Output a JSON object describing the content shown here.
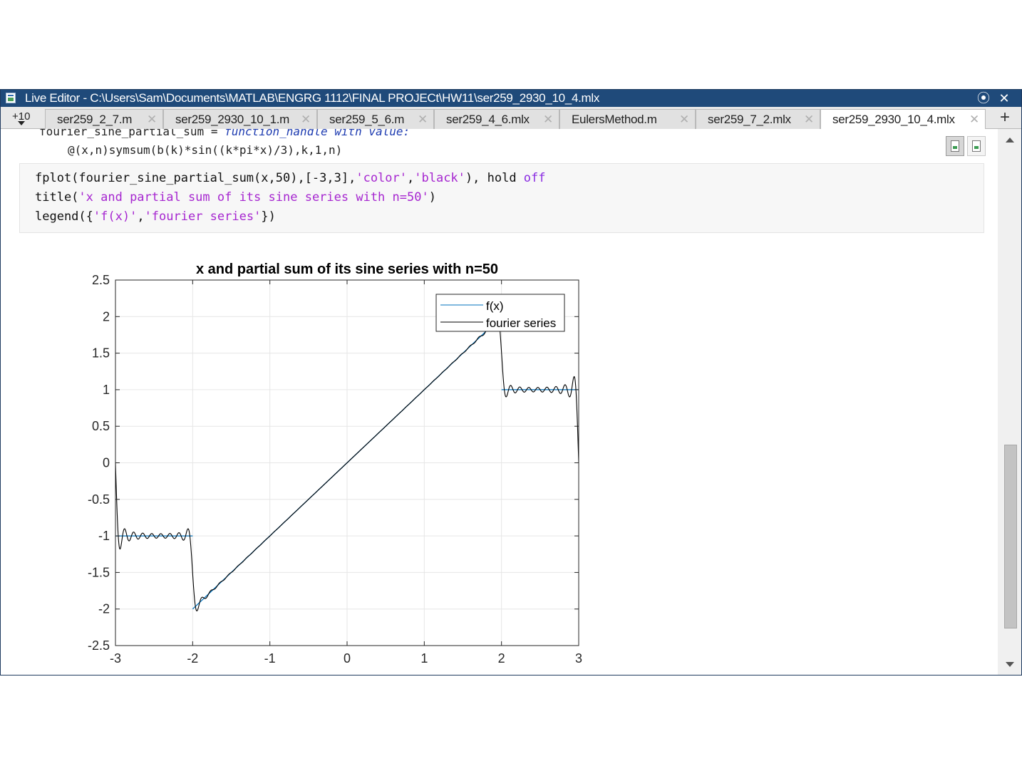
{
  "window": {
    "title": "Live Editor - C:\\Users\\Sam\\Documents\\MATLAB\\ENGRG 1112\\FINAL PROJECt\\HW11\\ser259_2930_10_4.mlx",
    "buttons": {
      "minimize_symbol": "⦿",
      "close_symbol": "✕"
    }
  },
  "tabs": {
    "overflow_label": "+10",
    "items": [
      {
        "label": "ser259_2_7.m"
      },
      {
        "label": "ser259_2930_10_1.m"
      },
      {
        "label": "ser259_5_6.m"
      },
      {
        "label": "ser259_4_6.mlx"
      },
      {
        "label": "EulersMethod.m"
      },
      {
        "label": "ser259_7_2.mlx"
      },
      {
        "label": "ser259_2930_10_4.mlx",
        "active": true
      }
    ],
    "close_symbol": "✕",
    "add_symbol": "+"
  },
  "editor": {
    "previous_line_1": "fourier_sine_partial_sum = ",
    "previous_line_1_comment": "function_handle with value:",
    "previous_line_2": "@(x,n)symsum(b(k)*sin((k*pi*x)/3),k,1,n)",
    "code": {
      "l1_a": "fplot(fourier_sine_partial_sum(x,50),[-3,3],",
      "l1_s1": "'color'",
      "l1_b": ",",
      "l1_s2": "'black'",
      "l1_c": "), hold ",
      "l1_kw": "off",
      "l2_a": "title(",
      "l2_s": "'x and partial sum of its sine series with n=50'",
      "l2_b": ")",
      "l3_a": "legend({",
      "l3_s1": "'f(x)'",
      "l3_b": ",",
      "l3_s2": "'fourier series'",
      "l3_c": "})"
    },
    "view_buttons": [
      "output-inline-icon",
      "output-right-icon"
    ]
  },
  "chart_data": {
    "type": "line",
    "title": "x and partial sum of its sine series with n=50",
    "xlabel": "",
    "ylabel": "",
    "xlim": [
      -3,
      3
    ],
    "ylim": [
      -2.5,
      2.5
    ],
    "xticks": [
      -3,
      -2,
      -1,
      0,
      1,
      2,
      3
    ],
    "xtick_labels": [
      "-3",
      "-2",
      "-1",
      "0",
      "1",
      "2",
      "3"
    ],
    "yticks": [
      2.5,
      2,
      1.5,
      1,
      0.5,
      0,
      -0.5,
      -1,
      -1.5,
      -2,
      -2.5
    ],
    "ytick_labels": [
      "2.5",
      "2",
      "1.5",
      "1",
      "0.5",
      "0",
      "-0.5",
      "-1",
      "-1.5",
      "-2",
      "-2.5"
    ],
    "grid": true,
    "legend_position": "top-right",
    "series": [
      {
        "name": "f(x)",
        "color": "#0072bd",
        "pieces": [
          {
            "x": [
              -3,
              -2
            ],
            "y": [
              -1,
              -1
            ]
          },
          {
            "x": [
              -2,
              2
            ],
            "y": [
              -2,
              2
            ]
          },
          {
            "x": [
              2,
              3
            ],
            "y": [
              1,
              1
            ]
          }
        ]
      },
      {
        "name": "fourier series",
        "color": "#000000",
        "terms": 50,
        "x_range": [
          -3,
          3
        ]
      }
    ]
  }
}
